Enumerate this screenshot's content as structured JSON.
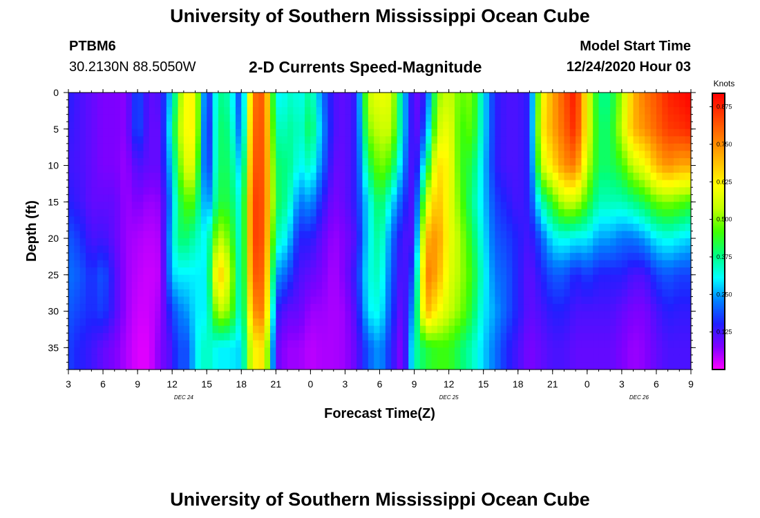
{
  "header": {
    "title": "University of Southern Mississippi Ocean Cube",
    "station_id": "PTBM6",
    "station_coords": "30.2130N 88.5050W",
    "plot_title": "2-D Currents Speed-Magnitude",
    "model_start_label": "Model Start Time",
    "model_start_value": "12/24/2020 Hour 03"
  },
  "footer": {
    "title": "University of Southern Mississippi Ocean Cube"
  },
  "chart_data": {
    "type": "heatmap",
    "title": "2-D Currents Speed-Magnitude",
    "xlabel": "Forecast Time(Z)",
    "ylabel": "Depth (ft)",
    "colorbar_label": "Knots",
    "x_hours_since_start": [
      0,
      54
    ],
    "x_tick_labels": [
      "3",
      "6",
      "9",
      "12",
      "15",
      "18",
      "21",
      "0",
      "3",
      "6",
      "9",
      "12",
      "15",
      "18",
      "21",
      "0",
      "3",
      "6",
      "9"
    ],
    "date_labels": [
      {
        "text": "DEC 24",
        "at_hour": 10
      },
      {
        "text": "DEC 25",
        "at_hour": 33
      },
      {
        "text": "DEC 26",
        "at_hour": 49.5
      }
    ],
    "y_range_ft": [
      0,
      38
    ],
    "y_ticks": [
      "0",
      "5",
      "10",
      "15",
      "20",
      "25",
      "30",
      "35"
    ],
    "colorbar_range": [
      0,
      0.92
    ],
    "colorbar_ticks": [
      "0.125",
      "0.250",
      "0.375",
      "0.500",
      "0.625",
      "0.750",
      "0.875"
    ],
    "colormap": [
      "#ff00ff",
      "#8000ff",
      "#2020ff",
      "#0080ff",
      "#00ffff",
      "#00ff80",
      "#40ff00",
      "#c0ff00",
      "#ffff00",
      "#ffc000",
      "#ff8000",
      "#ff4000",
      "#ff0000"
    ],
    "time_columns_hours": [
      0,
      1,
      2,
      3,
      4,
      5,
      6,
      7,
      8,
      9,
      9.5,
      10,
      10.5,
      11,
      12,
      13,
      14,
      15,
      16,
      17,
      18,
      19,
      19.5,
      20,
      21,
      22,
      23,
      24,
      25,
      26,
      27,
      28,
      29,
      30,
      31,
      32,
      33,
      34,
      35,
      36,
      37,
      38,
      39,
      40,
      41,
      42,
      43,
      44,
      45,
      46,
      47,
      48,
      49,
      50,
      51,
      52,
      53,
      54
    ],
    "depth_rows_ft": [
      0,
      5,
      10,
      15,
      20,
      25,
      30,
      35,
      38
    ],
    "speed_knots_by_time": [
      [
        0.15,
        0.14,
        0.13,
        0.15,
        0.2,
        0.22,
        0.2,
        0.18,
        0.18
      ],
      [
        0.12,
        0.12,
        0.12,
        0.13,
        0.17,
        0.2,
        0.18,
        0.15,
        0.15
      ],
      [
        0.1,
        0.1,
        0.1,
        0.1,
        0.12,
        0.16,
        0.16,
        0.13,
        0.13
      ],
      [
        0.08,
        0.08,
        0.08,
        0.1,
        0.13,
        0.2,
        0.18,
        0.1,
        0.1
      ],
      [
        0.08,
        0.08,
        0.08,
        0.1,
        0.1,
        0.12,
        0.12,
        0.08,
        0.08
      ],
      [
        0.07,
        0.07,
        0.06,
        0.06,
        0.06,
        0.06,
        0.06,
        0.05,
        0.05
      ],
      [
        0.2,
        0.2,
        0.12,
        0.08,
        0.05,
        0.04,
        0.03,
        0.02,
        0.02
      ],
      [
        0.1,
        0.1,
        0.1,
        0.06,
        0.04,
        0.03,
        0.03,
        0.02,
        0.02
      ],
      [
        0.12,
        0.1,
        0.1,
        0.07,
        0.05,
        0.04,
        0.06,
        0.08,
        0.08
      ],
      [
        0.3,
        0.35,
        0.3,
        0.25,
        0.3,
        0.28,
        0.18,
        0.12,
        0.12
      ],
      [
        0.45,
        0.5,
        0.45,
        0.4,
        0.38,
        0.3,
        0.22,
        0.2,
        0.2
      ],
      [
        0.6,
        0.6,
        0.55,
        0.45,
        0.4,
        0.3,
        0.24,
        0.18,
        0.18
      ],
      [
        0.62,
        0.62,
        0.6,
        0.48,
        0.38,
        0.3,
        0.25,
        0.2,
        0.2
      ],
      [
        0.62,
        0.62,
        0.55,
        0.45,
        0.35,
        0.3,
        0.3,
        0.3,
        0.3
      ],
      [
        0.12,
        0.1,
        0.12,
        0.2,
        0.3,
        0.3,
        0.3,
        0.35,
        0.35
      ],
      [
        0.38,
        0.4,
        0.4,
        0.42,
        0.55,
        0.7,
        0.55,
        0.3,
        0.3
      ],
      [
        0.35,
        0.38,
        0.4,
        0.42,
        0.48,
        0.55,
        0.5,
        0.3,
        0.3
      ],
      [
        0.15,
        0.18,
        0.25,
        0.3,
        0.3,
        0.3,
        0.3,
        0.28,
        0.28
      ],
      [
        0.78,
        0.8,
        0.82,
        0.85,
        0.85,
        0.82,
        0.75,
        0.62,
        0.62
      ],
      [
        0.82,
        0.82,
        0.82,
        0.82,
        0.82,
        0.8,
        0.78,
        0.65,
        0.65
      ],
      [
        0.3,
        0.35,
        0.4,
        0.42,
        0.35,
        0.25,
        0.15,
        0.1,
        0.1
      ],
      [
        0.32,
        0.35,
        0.38,
        0.36,
        0.3,
        0.2,
        0.1,
        0.06,
        0.06
      ],
      [
        0.35,
        0.38,
        0.36,
        0.3,
        0.22,
        0.15,
        0.1,
        0.06,
        0.06
      ],
      [
        0.3,
        0.32,
        0.3,
        0.22,
        0.15,
        0.12,
        0.1,
        0.06,
        0.06
      ],
      [
        0.38,
        0.42,
        0.35,
        0.25,
        0.15,
        0.1,
        0.06,
        0.04,
        0.04
      ],
      [
        0.22,
        0.25,
        0.22,
        0.15,
        0.1,
        0.08,
        0.06,
        0.05,
        0.05
      ],
      [
        0.12,
        0.12,
        0.1,
        0.08,
        0.06,
        0.05,
        0.05,
        0.05,
        0.05
      ],
      [
        0.1,
        0.1,
        0.1,
        0.1,
        0.08,
        0.08,
        0.06,
        0.06,
        0.06
      ],
      [
        0.15,
        0.15,
        0.15,
        0.15,
        0.12,
        0.15,
        0.12,
        0.1,
        0.1
      ],
      [
        0.55,
        0.5,
        0.4,
        0.3,
        0.3,
        0.32,
        0.3,
        0.2,
        0.2
      ],
      [
        0.6,
        0.55,
        0.5,
        0.42,
        0.38,
        0.35,
        0.32,
        0.25,
        0.25
      ],
      [
        0.58,
        0.55,
        0.45,
        0.3,
        0.22,
        0.2,
        0.18,
        0.15,
        0.15
      ],
      [
        0.3,
        0.3,
        0.25,
        0.18,
        0.12,
        0.1,
        0.08,
        0.06,
        0.06
      ],
      [
        0.08,
        0.08,
        0.08,
        0.1,
        0.12,
        0.2,
        0.28,
        0.35,
        0.35
      ],
      [
        0.15,
        0.2,
        0.35,
        0.55,
        0.7,
        0.78,
        0.72,
        0.42,
        0.42
      ],
      [
        0.5,
        0.55,
        0.65,
        0.7,
        0.75,
        0.72,
        0.62,
        0.45,
        0.45
      ],
      [
        0.55,
        0.6,
        0.62,
        0.6,
        0.6,
        0.58,
        0.55,
        0.45,
        0.45
      ],
      [
        0.48,
        0.45,
        0.45,
        0.48,
        0.52,
        0.52,
        0.5,
        0.4,
        0.4
      ],
      [
        0.5,
        0.48,
        0.42,
        0.38,
        0.42,
        0.45,
        0.42,
        0.35,
        0.35
      ],
      [
        0.3,
        0.3,
        0.28,
        0.28,
        0.3,
        0.32,
        0.3,
        0.28,
        0.28
      ],
      [
        0.15,
        0.15,
        0.15,
        0.18,
        0.2,
        0.22,
        0.25,
        0.22,
        0.22
      ],
      [
        0.12,
        0.12,
        0.12,
        0.15,
        0.18,
        0.2,
        0.2,
        0.16,
        0.16
      ],
      [
        0.12,
        0.12,
        0.12,
        0.12,
        0.15,
        0.15,
        0.15,
        0.12,
        0.12
      ],
      [
        0.15,
        0.15,
        0.15,
        0.15,
        0.12,
        0.1,
        0.1,
        0.08,
        0.08
      ],
      [
        0.6,
        0.62,
        0.55,
        0.35,
        0.2,
        0.15,
        0.12,
        0.1,
        0.1
      ],
      [
        0.72,
        0.72,
        0.65,
        0.45,
        0.3,
        0.2,
        0.15,
        0.12,
        0.12
      ],
      [
        0.82,
        0.8,
        0.75,
        0.55,
        0.32,
        0.2,
        0.15,
        0.12,
        0.12
      ],
      [
        0.9,
        0.88,
        0.78,
        0.55,
        0.3,
        0.15,
        0.12,
        0.1,
        0.1
      ],
      [
        0.6,
        0.6,
        0.55,
        0.45,
        0.3,
        0.18,
        0.12,
        0.1,
        0.1
      ],
      [
        0.38,
        0.4,
        0.4,
        0.35,
        0.25,
        0.15,
        0.12,
        0.1,
        0.1
      ],
      [
        0.38,
        0.4,
        0.4,
        0.35,
        0.25,
        0.15,
        0.12,
        0.1,
        0.1
      ],
      [
        0.52,
        0.55,
        0.45,
        0.35,
        0.22,
        0.15,
        0.1,
        0.08,
        0.08
      ],
      [
        0.7,
        0.7,
        0.55,
        0.38,
        0.22,
        0.12,
        0.08,
        0.06,
        0.06
      ],
      [
        0.78,
        0.75,
        0.6,
        0.42,
        0.25,
        0.12,
        0.08,
        0.07,
        0.07
      ],
      [
        0.82,
        0.8,
        0.7,
        0.48,
        0.3,
        0.18,
        0.12,
        0.1,
        0.1
      ],
      [
        0.88,
        0.85,
        0.75,
        0.5,
        0.32,
        0.2,
        0.15,
        0.12,
        0.12
      ],
      [
        0.9,
        0.86,
        0.72,
        0.48,
        0.3,
        0.18,
        0.14,
        0.12,
        0.12
      ],
      [
        0.92,
        0.88,
        0.72,
        0.45,
        0.28,
        0.18,
        0.14,
        0.12,
        0.12
      ]
    ]
  }
}
